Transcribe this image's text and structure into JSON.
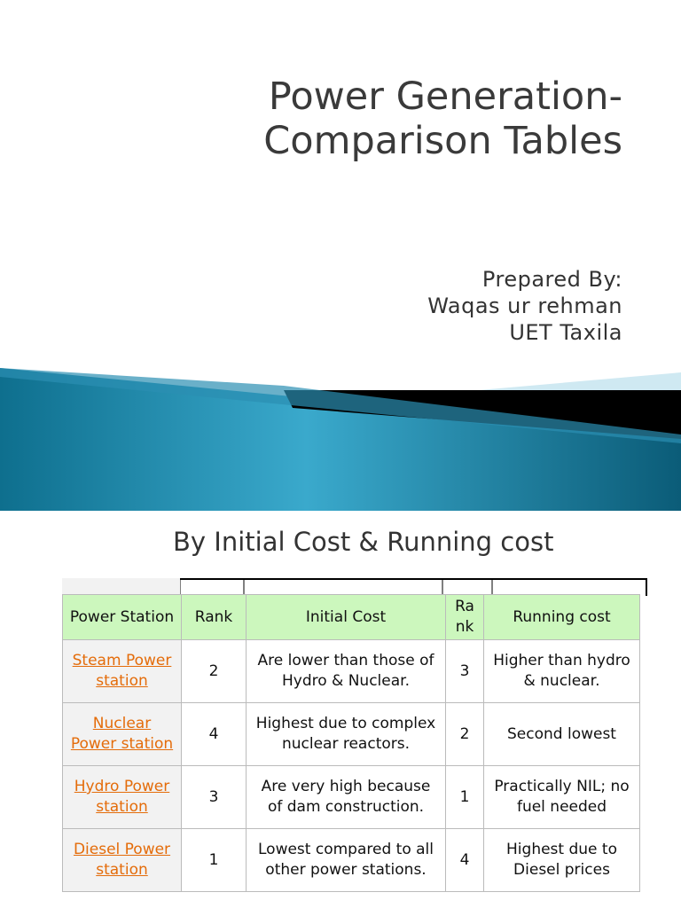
{
  "slide1": {
    "title_lines": [
      "Power Generation-",
      "Comparison Tables"
    ],
    "subtitle_lines": [
      "Prepared By:",
      "Waqas ur rehman",
      "UET Taxila"
    ]
  },
  "slide2": {
    "title": "By Initial Cost & Running cost",
    "table": {
      "header": [
        "Power Station",
        "Rank",
        "Initial Cost",
        "Rank",
        "Running cost"
      ],
      "rows": [
        [
          "Steam Power station",
          "2",
          "Are lower than those of Hydro & Nuclear.",
          "3",
          "Higher than hydro & nuclear."
        ],
        [
          "Nuclear Power station",
          "4",
          "Highest due to complex nuclear reactors.",
          "2",
          "Second lowest"
        ],
        [
          "Hydro Power station",
          "3",
          "Are very high because of dam construction.",
          "1",
          "Practically NIL; no fuel needed"
        ],
        [
          "Diesel Power station",
          "1",
          "Lowest compared to all other power stations.",
          "4",
          "Highest due to Diesel prices"
        ]
      ]
    }
  }
}
